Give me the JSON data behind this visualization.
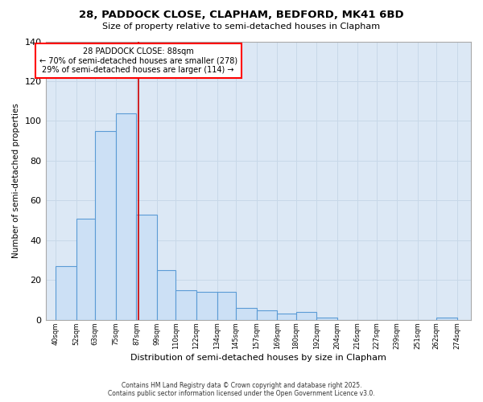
{
  "title_line1": "28, PADDOCK CLOSE, CLAPHAM, BEDFORD, MK41 6BD",
  "title_line2": "Size of property relative to semi-detached houses in Clapham",
  "xlabel": "Distribution of semi-detached houses by size in Clapham",
  "ylabel": "Number of semi-detached properties",
  "footer_line1": "Contains HM Land Registry data © Crown copyright and database right 2025.",
  "footer_line2": "Contains public sector information licensed under the Open Government Licence v3.0.",
  "annotation_line1": "28 PADDOCK CLOSE: 88sqm",
  "annotation_line2": "← 70% of semi-detached houses are smaller (278)",
  "annotation_line3": "29% of semi-detached houses are larger (114) →",
  "property_size": 88,
  "bar_left_edges": [
    40,
    52,
    63,
    75,
    87,
    99,
    110,
    122,
    134,
    145,
    157,
    169,
    180,
    192,
    204,
    216,
    227,
    239,
    251,
    262
  ],
  "bar_widths": [
    12,
    11,
    12,
    12,
    12,
    11,
    12,
    12,
    11,
    12,
    12,
    11,
    12,
    12,
    12,
    11,
    12,
    12,
    11,
    12
  ],
  "bar_heights": [
    27,
    51,
    95,
    104,
    53,
    25,
    15,
    14,
    14,
    6,
    5,
    3,
    4,
    1,
    0,
    0,
    0,
    0,
    0,
    1
  ],
  "tick_labels": [
    "40sqm",
    "52sqm",
    "63sqm",
    "75sqm",
    "87sqm",
    "99sqm",
    "110sqm",
    "122sqm",
    "134sqm",
    "145sqm",
    "157sqm",
    "169sqm",
    "180sqm",
    "192sqm",
    "204sqm",
    "216sqm",
    "227sqm",
    "239sqm",
    "251sqm",
    "262sqm",
    "274sqm"
  ],
  "tick_positions": [
    40,
    52,
    63,
    75,
    87,
    99,
    110,
    122,
    134,
    145,
    157,
    169,
    180,
    192,
    204,
    216,
    227,
    239,
    251,
    262,
    274
  ],
  "bar_facecolor": "#cce0f5",
  "bar_edgecolor": "#5b9bd5",
  "redline_color": "#cc0000",
  "grid_color": "#c8d8e8",
  "bg_color": "#dce8f5",
  "ylim": [
    0,
    140
  ],
  "xlim": [
    34,
    282
  ]
}
